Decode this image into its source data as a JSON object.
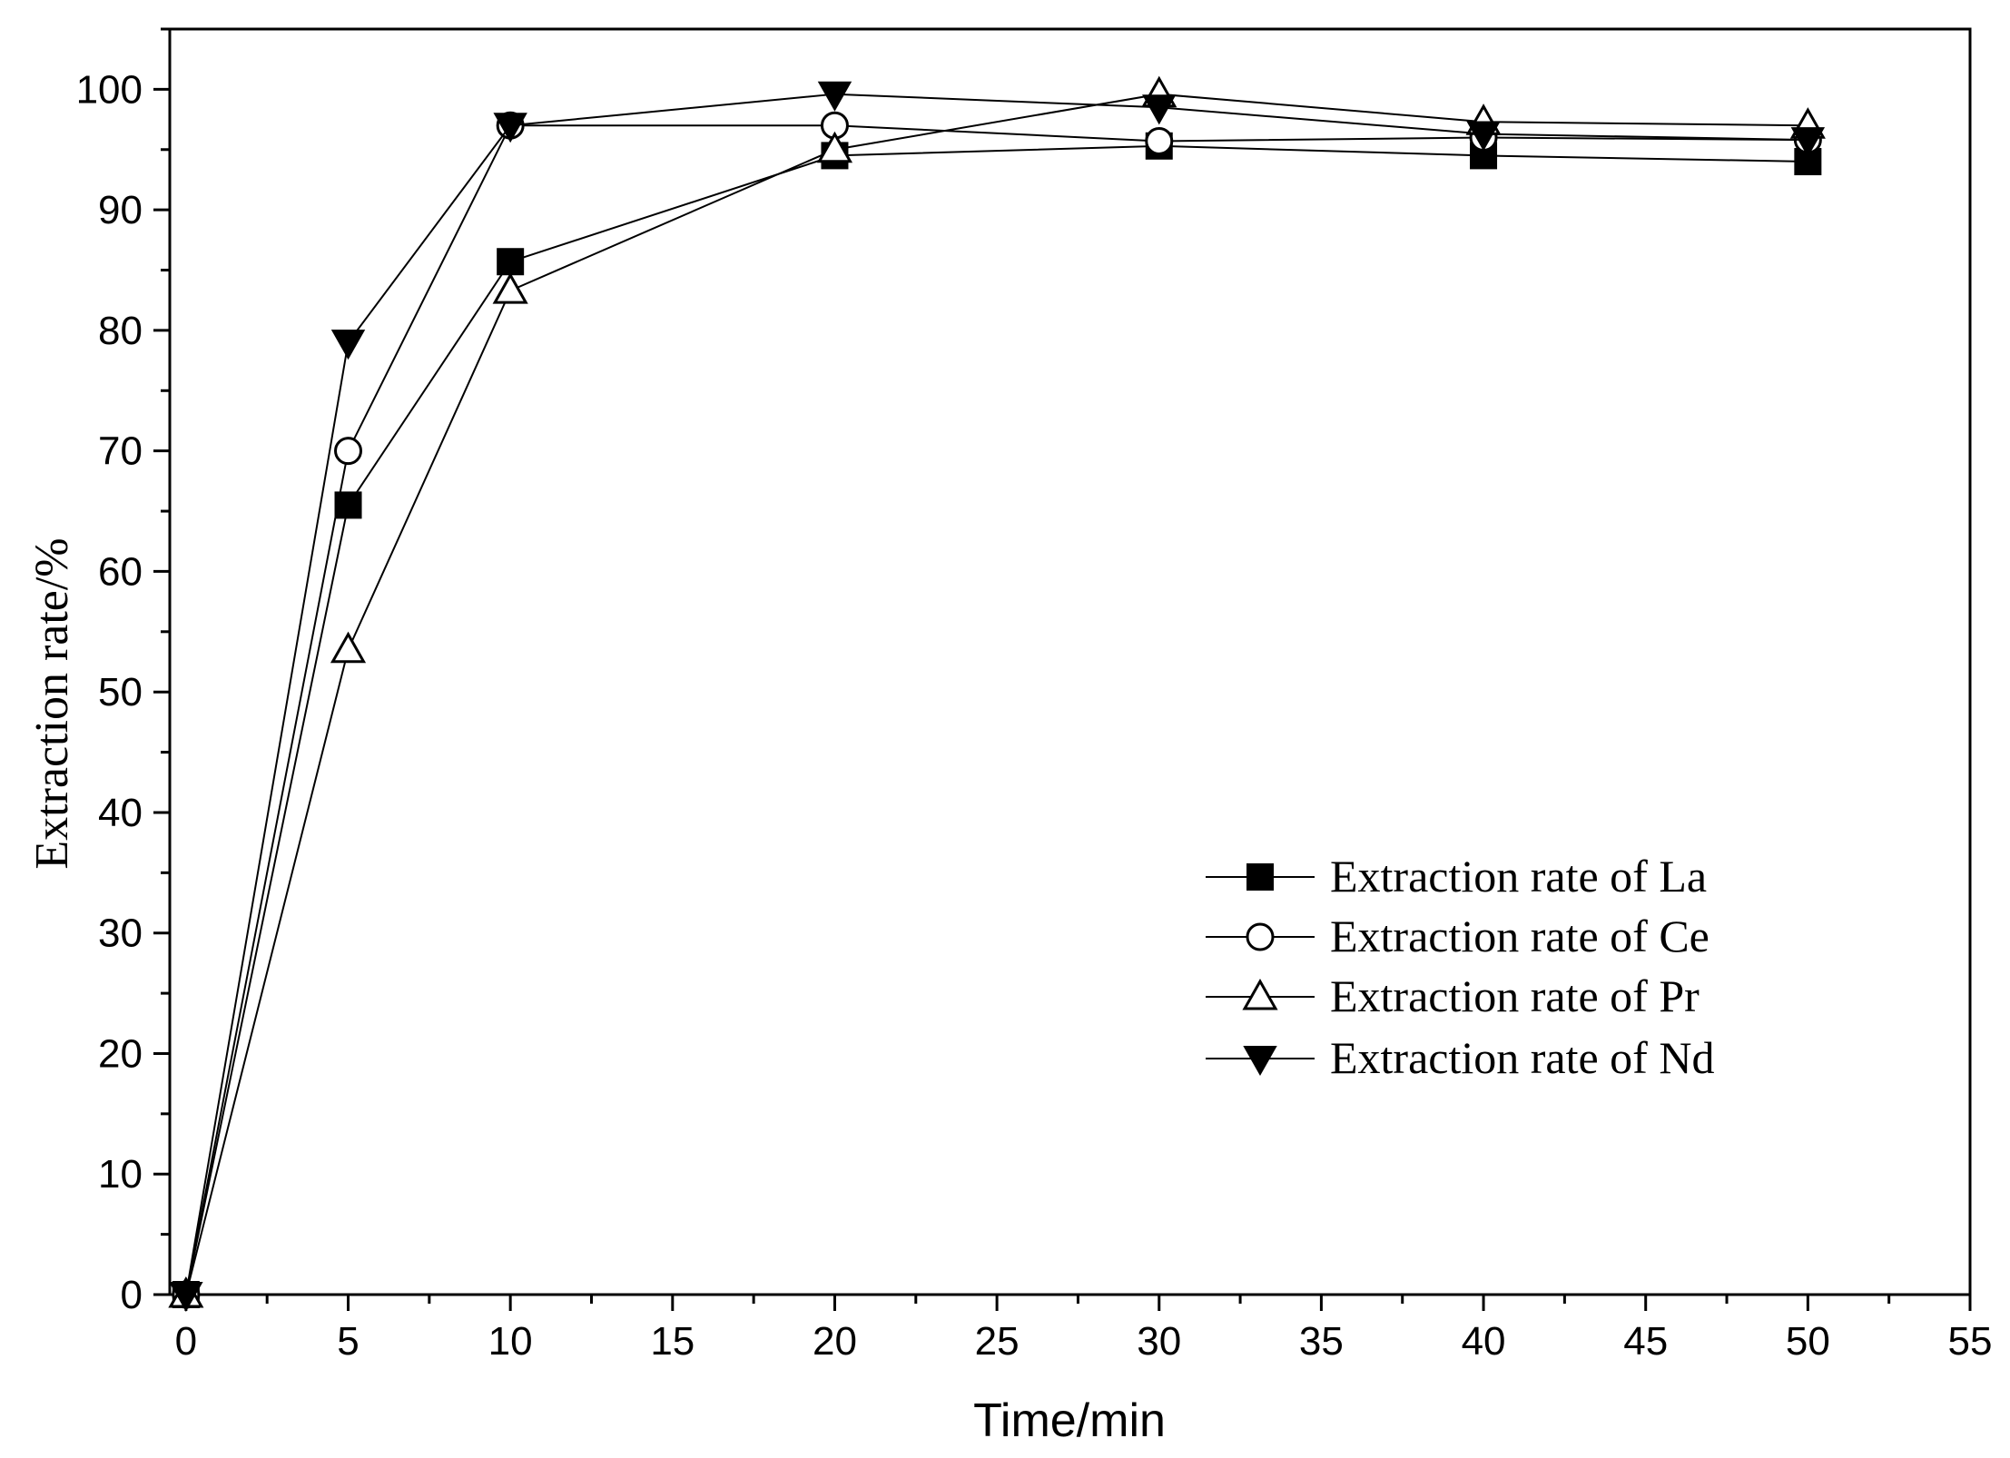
{
  "chart_data": {
    "type": "line",
    "title": "",
    "xlabel": "Time/min",
    "ylabel": "Extraction rate/%",
    "xlim": [
      -0.5,
      55
    ],
    "ylim": [
      0,
      105
    ],
    "x_ticks": [
      0,
      5,
      10,
      15,
      20,
      25,
      30,
      35,
      40,
      45,
      50,
      55
    ],
    "y_ticks": [
      0,
      10,
      20,
      30,
      40,
      50,
      60,
      70,
      80,
      90,
      100
    ],
    "grid": false,
    "legend_position": "center-right",
    "x": [
      0,
      5,
      10,
      20,
      30,
      40,
      50
    ],
    "series": [
      {
        "name": "Extraction rate of La",
        "marker": "filled-square",
        "values": [
          0,
          65.5,
          85.7,
          94.5,
          95.3,
          94.5,
          94.0
        ]
      },
      {
        "name": "Extraction rate of Ce",
        "marker": "open-circle",
        "values": [
          0,
          70.0,
          97.0,
          97.0,
          95.7,
          96.0,
          95.8
        ]
      },
      {
        "name": "Extraction rate of Pr",
        "marker": "open-triangle-up",
        "values": [
          0,
          53.5,
          83.3,
          95.0,
          99.6,
          97.3,
          97.0
        ]
      },
      {
        "name": "Extraction rate of Nd",
        "marker": "filled-triangle-down",
        "values": [
          0,
          79.0,
          97.0,
          99.6,
          98.5,
          96.3,
          95.8
        ]
      }
    ],
    "colors": {
      "line": "#000000",
      "background": "#ffffff"
    }
  }
}
